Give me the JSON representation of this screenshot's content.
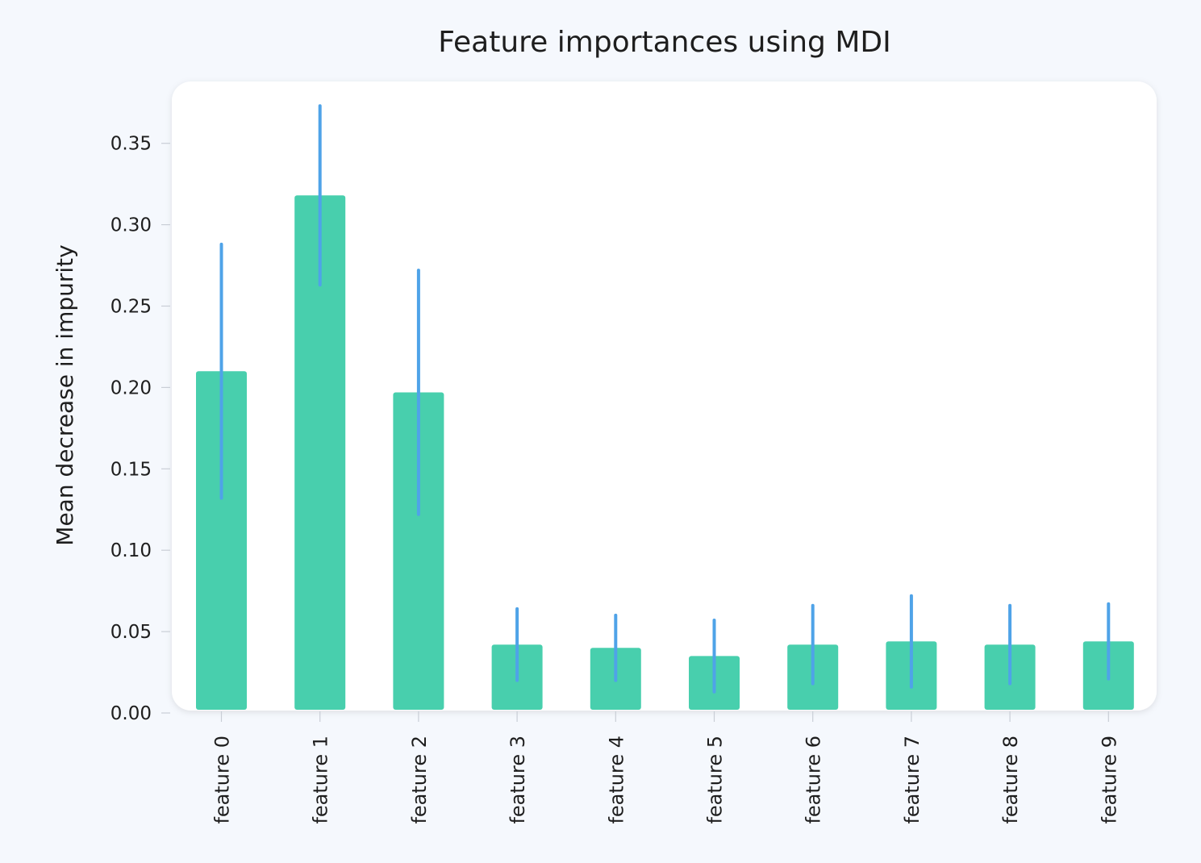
{
  "chart_data": {
    "type": "bar",
    "title": "Feature importances using MDI",
    "xlabel": "",
    "ylabel": "Mean decrease in impurity",
    "categories": [
      "feature 0",
      "feature 1",
      "feature 2",
      "feature 3",
      "feature 4",
      "feature 5",
      "feature 6",
      "feature 7",
      "feature 8",
      "feature 9"
    ],
    "values": [
      0.21,
      0.318,
      0.197,
      0.042,
      0.04,
      0.035,
      0.042,
      0.044,
      0.042,
      0.044
    ],
    "error": [
      0.078,
      0.055,
      0.075,
      0.022,
      0.02,
      0.022,
      0.024,
      0.028,
      0.024,
      0.023
    ],
    "ylim": [
      0,
      0.375
    ],
    "yticks": [
      "0.00",
      "0.05",
      "0.10",
      "0.15",
      "0.20",
      "0.25",
      "0.30",
      "0.35"
    ],
    "ytick_values": [
      0,
      0.05,
      0.1,
      0.15,
      0.2,
      0.25,
      0.3,
      0.35
    ],
    "grid": false,
    "colors": {
      "bar": "#48cfad",
      "error_bar": "#4fa3e8",
      "plot_background": "#ffffff",
      "page_background": "#f5f8fd",
      "axis": "#c9ced6",
      "text": "#1e1e1e"
    }
  }
}
